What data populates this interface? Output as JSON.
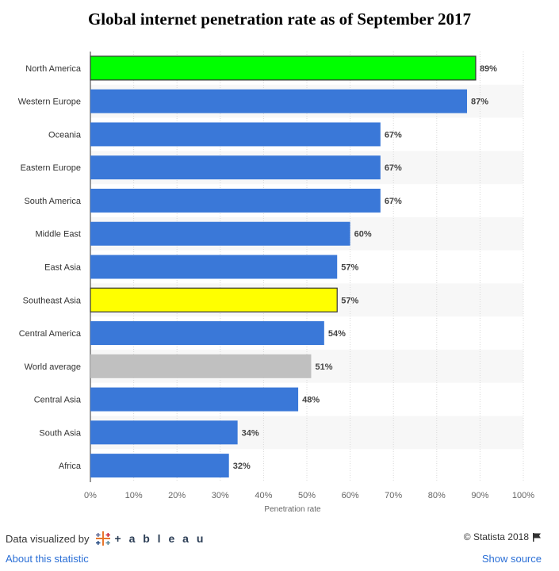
{
  "chart_data": {
    "type": "bar",
    "orientation": "horizontal",
    "title": "Global internet penetration rate as of September 2017",
    "xlabel": "Penetration rate",
    "ylabel": "",
    "xlim": [
      0,
      100
    ],
    "x_ticks": [
      "0%",
      "10%",
      "20%",
      "30%",
      "40%",
      "50%",
      "60%",
      "70%",
      "80%",
      "90%",
      "100%"
    ],
    "categories": [
      "North America",
      "Western Europe",
      "Oceania",
      "Eastern Europe",
      "South America",
      "Middle East",
      "East Asia",
      "Southeast Asia",
      "Central America",
      "World average",
      "Central Asia",
      "South Asia",
      "Africa"
    ],
    "values": [
      89,
      87,
      67,
      67,
      67,
      60,
      57,
      57,
      54,
      51,
      48,
      34,
      32
    ],
    "value_labels": [
      "89%",
      "87%",
      "67%",
      "67%",
      "67%",
      "60%",
      "57%",
      "57%",
      "54%",
      "51%",
      "48%",
      "34%",
      "32%"
    ],
    "colors": [
      "#00ff00",
      "#3a78d8",
      "#3a78d8",
      "#3a78d8",
      "#3a78d8",
      "#3a78d8",
      "#3a78d8",
      "#ffff00",
      "#3a78d8",
      "#c0c0c0",
      "#3a78d8",
      "#3a78d8",
      "#3a78d8"
    ],
    "highlighted": [
      true,
      false,
      false,
      false,
      false,
      false,
      false,
      true,
      false,
      false,
      false,
      false,
      false
    ],
    "grid": true
  },
  "footer": {
    "visualized_by": "Data visualized by",
    "tableau": "+ a b l e a u",
    "copyright": "© Statista 2018",
    "about_link": "About this statistic",
    "source_link": "Show source"
  }
}
